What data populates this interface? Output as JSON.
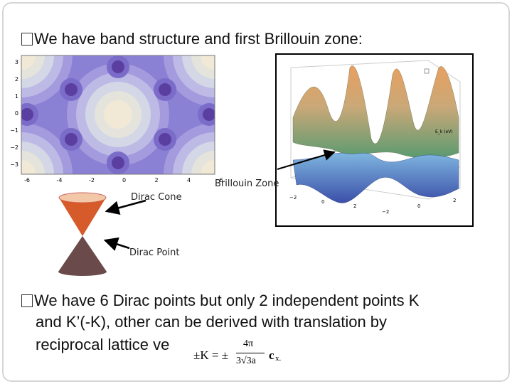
{
  "slide": {
    "heading": "We have band structure and first Brillouin zone:",
    "body_lines": [
      "We have 6 Dirac points but only 2 independent points K",
      "and K’(-K), other can be derived with translation by",
      "reciprocal lattice ve"
    ]
  },
  "contour_plot": {
    "x_ticks": [
      "-6",
      "-4",
      "-2",
      "0",
      "2",
      "4",
      "6"
    ],
    "y_ticks": [
      "3",
      "2",
      "1",
      "0",
      "−1",
      "−2",
      "−3"
    ]
  },
  "band_plot": {
    "energy_label": "E_k (eV)",
    "x_ticks": [
      "−2",
      "0",
      "2"
    ],
    "y_ticks": [
      "−2",
      "0",
      "2"
    ]
  },
  "labels": {
    "brillouin_zone": "Brillouin Zone",
    "dirac_cone": "Dirac Cone",
    "dirac_point": "Dirac Point"
  },
  "formula": {
    "lhs": "±K = ±",
    "numerator": "4π",
    "denominator": "3√3a",
    "vector": "c",
    "subscript": "x."
  }
}
